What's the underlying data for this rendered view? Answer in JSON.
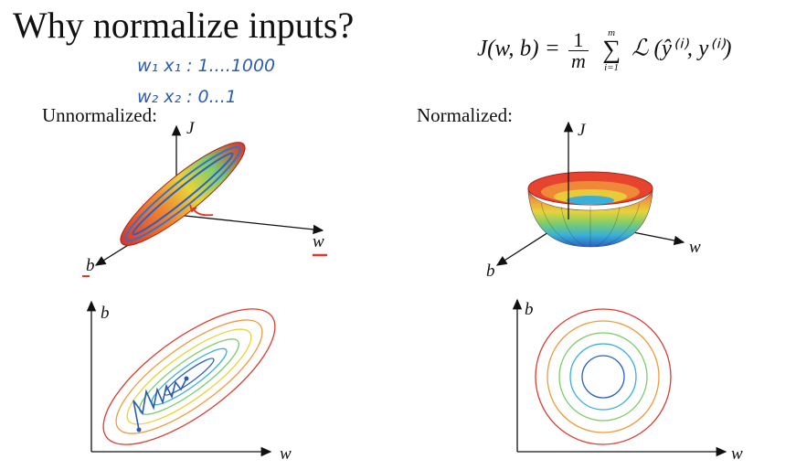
{
  "title": "Why normalize inputs?",
  "formula": {
    "lhs": "J(w, b) =",
    "frac_num": "1",
    "frac_den": "m",
    "sum_top": "m",
    "sum_bottom": "i=1",
    "loss": "ℒ (ŷ⁽ⁱ⁾, y⁽ⁱ⁾)"
  },
  "handwritten_notes": [
    "w₁   x₁ : 1....1000",
    "w₂   x₂ : 0...1"
  ],
  "panels": {
    "unnormalized_label": "Unnormalized:",
    "normalized_label": "Normalized:",
    "axis_J": "J",
    "axis_w": "w",
    "axis_b": "b"
  },
  "colors": {
    "contours": [
      "#2a60c4",
      "#3ab0d8",
      "#7dcd6c",
      "#e8d33a",
      "#f09a3c",
      "#e03a2e"
    ],
    "annotation_red": "#e0372a",
    "annotation_blue": "#2a5db0"
  }
}
